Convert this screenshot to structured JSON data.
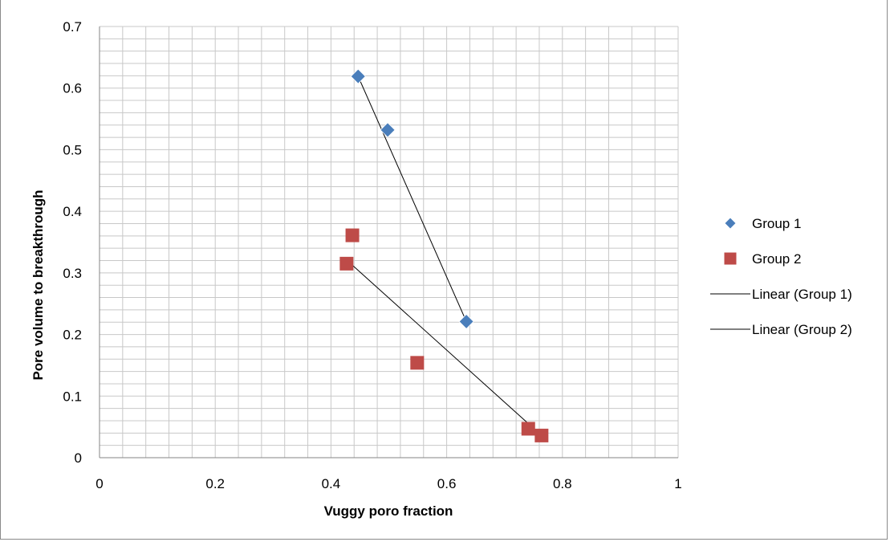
{
  "chart_data": {
    "type": "scatter",
    "title": "",
    "xlabel": "Vuggy poro fraction",
    "ylabel": "Pore volume to breakthrough",
    "xlim": [
      0,
      1
    ],
    "ylim": [
      0,
      0.7
    ],
    "x_ticks": [
      "0",
      "0.2",
      "0.4",
      "0.6",
      "0.8",
      "1"
    ],
    "y_ticks": [
      "0",
      "0.1",
      "0.2",
      "0.3",
      "0.4",
      "0.5",
      "0.6",
      "0.7"
    ],
    "x_tick_values": [
      0,
      0.2,
      0.4,
      0.6,
      0.8,
      1
    ],
    "y_tick_values": [
      0,
      0.1,
      0.2,
      0.3,
      0.4,
      0.5,
      0.6,
      0.7
    ],
    "grid": true,
    "legend_position": "right",
    "series": [
      {
        "name": "Group 1",
        "marker": "diamond",
        "color": "#4a7ebb",
        "x": [
          0.447,
          0.498,
          0.634
        ],
        "y": [
          0.619,
          0.532,
          0.221
        ]
      },
      {
        "name": "Group 2",
        "marker": "square",
        "color": "#be4b48",
        "x": [
          0.437,
          0.427,
          0.549,
          0.741,
          0.764
        ],
        "y": [
          0.361,
          0.315,
          0.154,
          0.047,
          0.036
        ]
      }
    ],
    "trendlines": [
      {
        "name": "Linear (Group 1)",
        "color": "#000000",
        "x": [
          0.447,
          0.634
        ],
        "y": [
          0.619,
          0.221
        ]
      },
      {
        "name": "Linear (Group 2)",
        "color": "#000000",
        "x": [
          0.427,
          0.764
        ],
        "y": [
          0.321,
          0.036
        ]
      }
    ]
  }
}
